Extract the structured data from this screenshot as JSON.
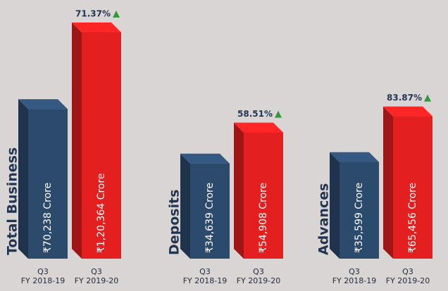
{
  "chart_data": [
    {
      "type": "bar",
      "title": "Total Business",
      "categories": [
        "Q3\nFY 2018-19",
        "Q3\nFY 2019-20"
      ],
      "values": [
        70238,
        120364
      ],
      "value_labels": [
        "₹70,238 Crore",
        "₹1,20,364 Crore"
      ],
      "colors": [
        "#2c4a6c",
        "#e3201f"
      ],
      "annotation": "71.37%"
    },
    {
      "type": "bar",
      "title": "Deposits",
      "categories": [
        "Q3\nFY 2018-19",
        "Q3\nFY 2019-20"
      ],
      "values": [
        34639,
        54908
      ],
      "value_labels": [
        "₹34,639 Crore",
        "₹54,908 Crore"
      ],
      "colors": [
        "#2c4a6c",
        "#e3201f"
      ],
      "annotation": "58.51%"
    },
    {
      "type": "bar",
      "title": "Advances",
      "categories": [
        "Q3\nFY 2018-19",
        "Q3\nFY 2019-20"
      ],
      "values": [
        35599,
        65456
      ],
      "value_labels": [
        "₹35,599 Crore",
        "₹65,456 Crore"
      ],
      "colors": [
        "#2c4a6c",
        "#e3201f"
      ],
      "annotation": "83.87%"
    }
  ]
}
